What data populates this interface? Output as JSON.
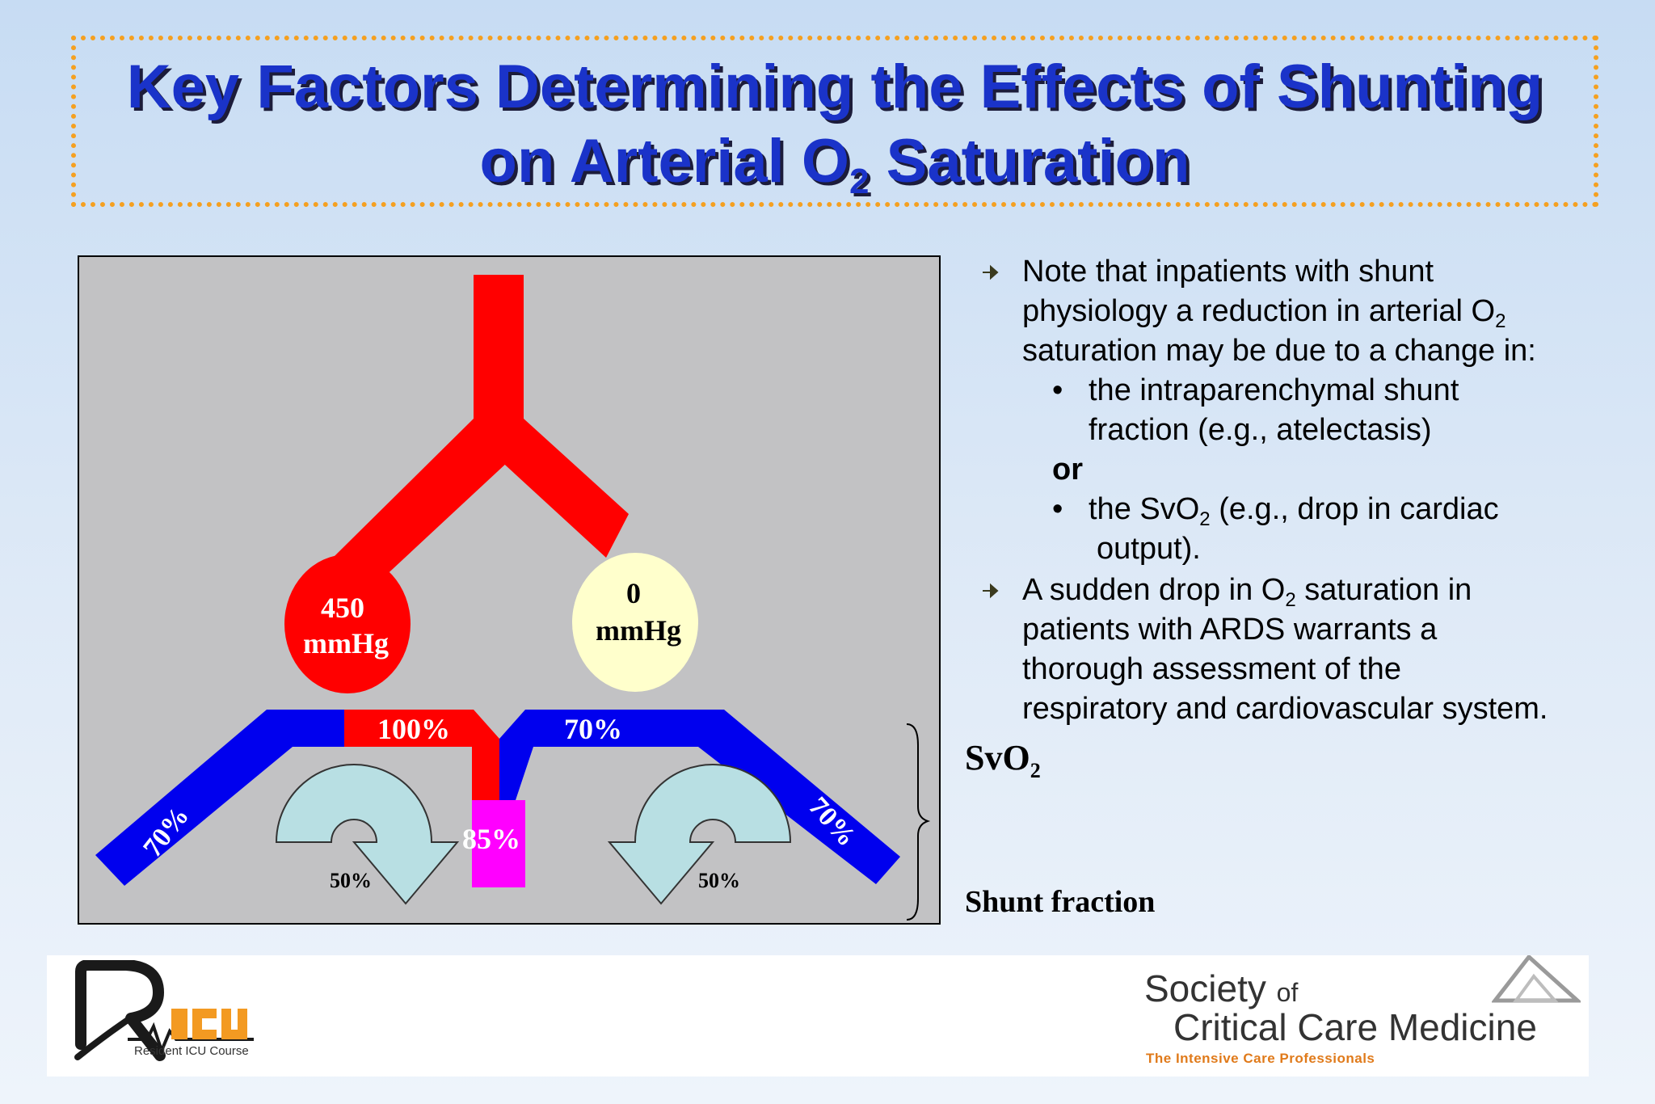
{
  "title": {
    "line1": "Key Factors Determining the Effects of Shunting",
    "line2_before": "on Arterial O",
    "line2_sub": "2",
    "line2_after": " Saturation"
  },
  "diagram": {
    "left_alveolus": {
      "value": "450",
      "unit": "mmHg"
    },
    "right_alveolus": {
      "value": "0",
      "unit": "mmHg"
    },
    "top_left_segment": "100%",
    "top_right_segment": "70%",
    "left_limb": "70%",
    "right_limb": "70%",
    "mixed": "85%",
    "left_flow": "50%",
    "right_flow": "50%",
    "colors": {
      "oxygenated": "#ff0000",
      "venous": "#0000ee",
      "mixed": "#ff00ff",
      "alveolus_ventilated": "#ff0000",
      "alveolus_unventilated": "#ffffcc",
      "flow_arrow": "#b8dfe3"
    }
  },
  "notes": {
    "bullet1": {
      "line1": "Note that inpatients with shunt",
      "line2_before": "physiology a reduction in arterial O",
      "line2_sub": "2",
      "line3": "saturation may be due to a change in:",
      "sub1_line1": "the intraparenchymal shunt",
      "sub1_line2": "fraction (e.g., atelectasis)",
      "or": "or",
      "sub2_before": "the SvO",
      "sub2_sub": "2",
      "sub2_after": " (e.g., drop in cardiac",
      "sub2_line2": "output)."
    },
    "bullet2": {
      "line1_before": "A sudden drop in O",
      "line1_sub": "2",
      "line1_after": " saturation in",
      "line2": "patients with ARDS warrants a",
      "line3": "thorough assessment of the",
      "line4": "respiratory and cardiovascular system."
    },
    "sub_bullet_char": "•"
  },
  "labels": {
    "svo2_before": "SvO",
    "svo2_sub": "2",
    "shunt_fraction": "Shunt fraction"
  },
  "logos": {
    "ricu_caption": "Resident ICU Course",
    "sccm_society": "Society",
    "sccm_of": "of",
    "sccm_name": "Critical Care Medicine",
    "sccm_tagline": "The Intensive Care Professionals"
  }
}
